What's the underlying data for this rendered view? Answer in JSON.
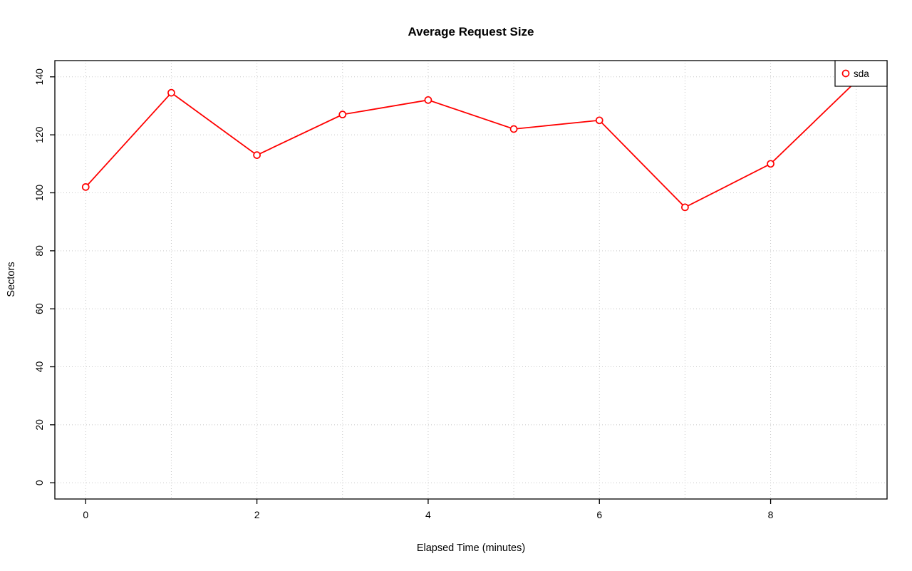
{
  "title": "Average Request Size",
  "chart_data": {
    "type": "line",
    "title": "Average Request Size",
    "xlabel": "Elapsed Time (minutes)",
    "ylabel": "Sectors",
    "x": [
      0,
      1,
      2,
      3,
      4,
      5,
      6,
      7,
      8,
      9
    ],
    "series": [
      {
        "name": "sda",
        "color": "#ff0000",
        "marker": "open-circle",
        "values": [
          102,
          134.5,
          113,
          127,
          132,
          122,
          125,
          95,
          110,
          138.5
        ]
      }
    ],
    "xlim": [
      -0.36,
      9.36
    ],
    "ylim": [
      -5.6,
      145.6
    ],
    "x_ticks": [
      0,
      2,
      4,
      6,
      8
    ],
    "y_ticks": [
      0,
      20,
      40,
      60,
      80,
      100,
      120,
      140
    ],
    "x_grid": [
      0,
      1,
      2,
      3,
      4,
      5,
      6,
      7,
      8,
      9
    ],
    "y_grid": [
      0,
      20,
      40,
      60,
      80,
      100,
      120,
      140
    ],
    "grid": true,
    "grid_color": "#c8c8c8",
    "plot_border_color": "#000000",
    "background_color": "#ffffff",
    "legend_position": "top-right",
    "legend_entries": [
      "sda"
    ]
  }
}
